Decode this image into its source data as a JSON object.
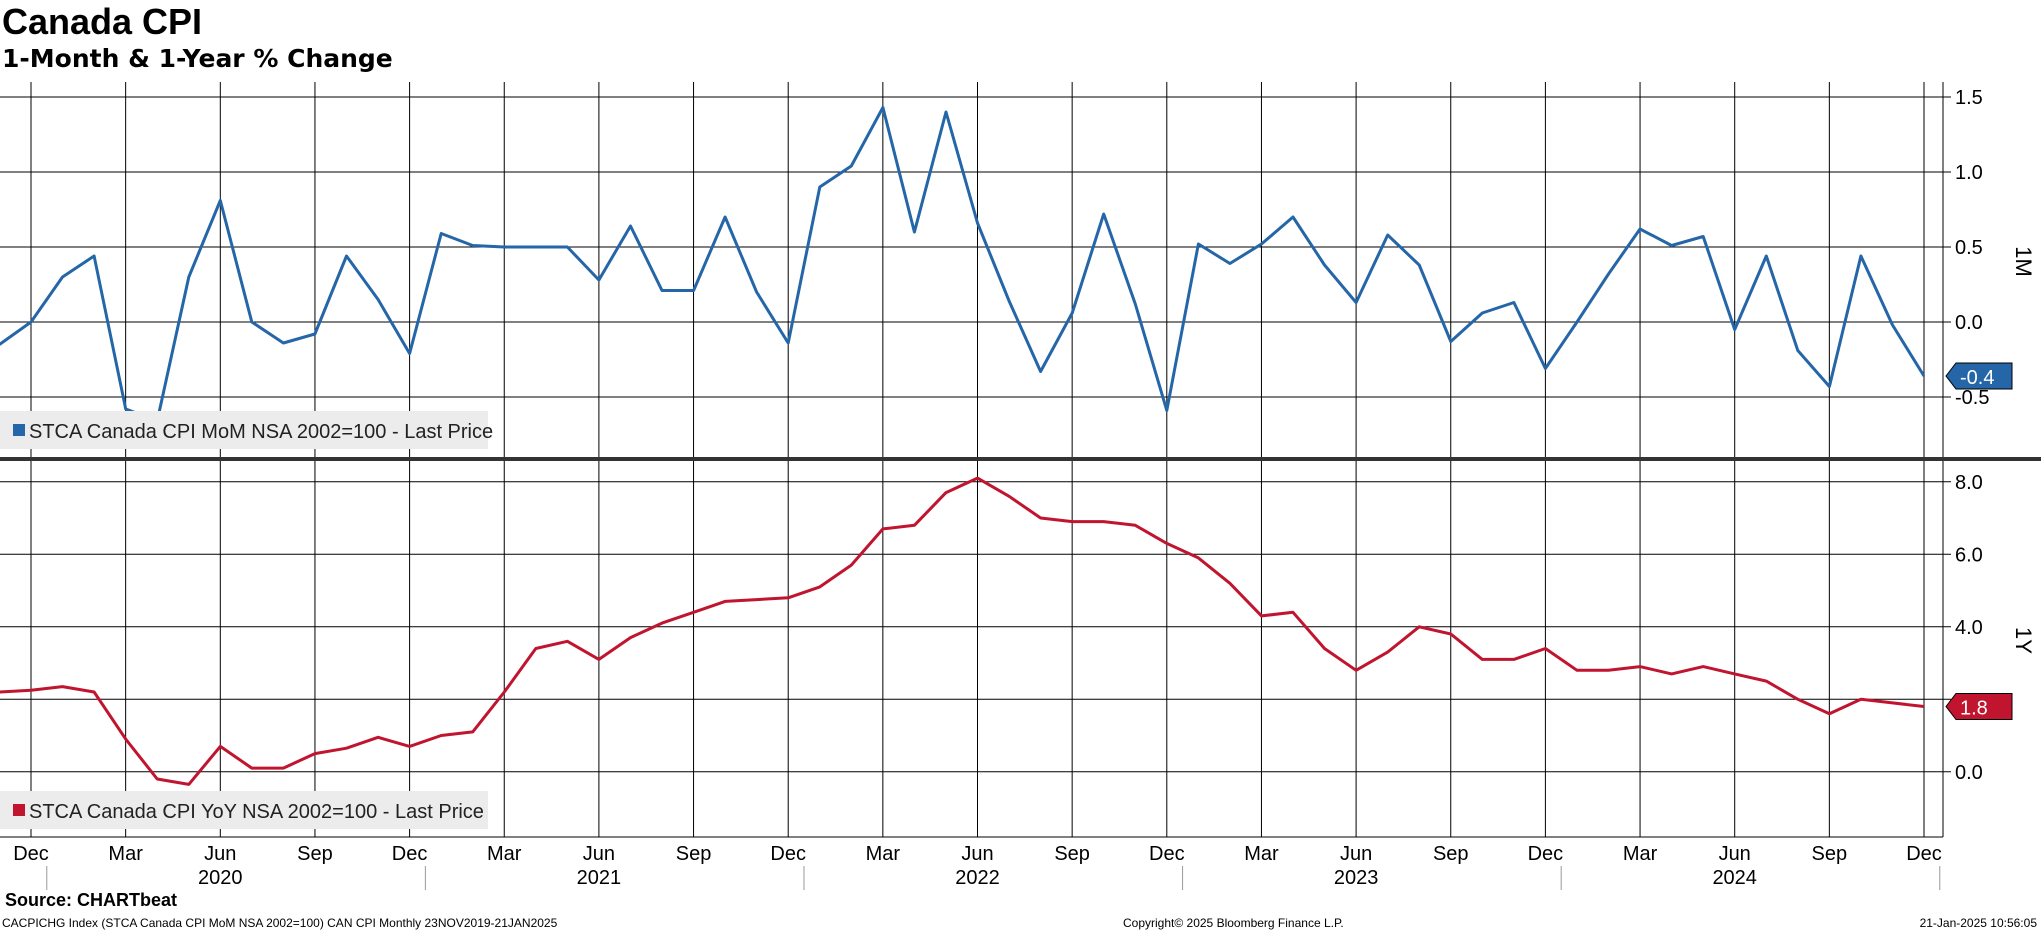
{
  "header": {
    "title": "Canada CPI",
    "subtitle": "1-Month & 1-Year % Change"
  },
  "footer": {
    "source": "Source: CHARTbeat",
    "left": "CACPICHG Index (STCA Canada CPI MoM NSA 2002=100) CAN CPI  Monthly 23NOV2019-21JAN2025",
    "center": "Copyright© 2025 Bloomberg Finance L.P.",
    "right": "21-Jan-2025 10:56:05"
  },
  "colors": {
    "mom": "#2566a8",
    "yoy": "#c0142f",
    "grid": "#000000",
    "legend_bg": "#ececec"
  },
  "chart_data": [
    {
      "type": "line",
      "panel": "top",
      "axis_label": "1M",
      "legend": "STCA Canada CPI MoM NSA 2002=100 - Last Price",
      "last_value_label": "-0.4",
      "ylim": [
        -0.9,
        1.6
      ],
      "yticks": [
        1.5,
        1.0,
        0.5,
        0.0,
        -0.5
      ],
      "ytick_labels": [
        "1.5",
        "1.0",
        "0.5",
        "0.0",
        "-0.5"
      ],
      "x_start": "2019-11",
      "series": [
        {
          "values": [
            -0.15,
            0.0,
            0.3,
            0.44,
            -0.58,
            -0.66,
            0.3,
            0.81,
            0.0,
            -0.14,
            -0.08,
            0.44,
            0.15,
            -0.21,
            0.59,
            0.51,
            0.5,
            0.5,
            0.5,
            0.28,
            0.64,
            0.21,
            0.21,
            0.7,
            0.2,
            -0.14,
            0.9,
            1.04,
            1.43,
            0.6,
            1.4,
            0.66,
            0.14,
            -0.33,
            0.06,
            0.72,
            0.12,
            -0.59,
            0.52,
            0.39,
            0.52,
            0.7,
            0.38,
            0.13,
            0.58,
            0.38,
            -0.13,
            0.06,
            0.13,
            -0.31,
            0.0,
            0.32,
            0.62,
            0.51,
            0.57,
            -0.05,
            0.44,
            -0.19,
            -0.43,
            0.44,
            -0.02,
            -0.36
          ]
        }
      ]
    },
    {
      "type": "line",
      "panel": "bottom",
      "axis_label": "1Y",
      "legend": "STCA Canada CPI YoY NSA 2002=100 - Last Price",
      "last_value_label": "1.8",
      "ylim": [
        -1.8,
        8.6
      ],
      "yticks": [
        8.0,
        6.0,
        4.0,
        2.0,
        0.0
      ],
      "ytick_labels": [
        "8.0",
        "6.0",
        "4.0",
        "",
        "0.0"
      ],
      "x_start": "2019-11",
      "series": [
        {
          "values": [
            2.2,
            2.25,
            2.35,
            2.2,
            0.9,
            -0.2,
            -0.35,
            0.7,
            0.1,
            0.1,
            0.5,
            0.65,
            0.95,
            0.7,
            1.0,
            1.1,
            2.2,
            3.4,
            3.6,
            3.1,
            3.7,
            4.1,
            4.4,
            4.7,
            4.75,
            4.8,
            5.1,
            5.7,
            6.7,
            6.8,
            7.7,
            8.1,
            7.6,
            7.0,
            6.9,
            6.9,
            6.8,
            6.3,
            5.9,
            5.2,
            4.3,
            4.4,
            3.4,
            2.8,
            3.3,
            4.0,
            3.8,
            3.1,
            3.1,
            3.4,
            2.8,
            2.8,
            2.9,
            2.7,
            2.9,
            2.7,
            2.5,
            2.0,
            1.6,
            2.0,
            1.9,
            1.8
          ]
        }
      ]
    }
  ],
  "x_axis": {
    "month_labels": [
      {
        "label": "Dec",
        "index": 1
      },
      {
        "label": "Mar",
        "index": 4
      },
      {
        "label": "Jun",
        "index": 7
      },
      {
        "label": "Sep",
        "index": 10
      },
      {
        "label": "Dec",
        "index": 13
      },
      {
        "label": "Mar",
        "index": 16
      },
      {
        "label": "Jun",
        "index": 19
      },
      {
        "label": "Sep",
        "index": 22
      },
      {
        "label": "Dec",
        "index": 25
      },
      {
        "label": "Mar",
        "index": 28
      },
      {
        "label": "Jun",
        "index": 31
      },
      {
        "label": "Sep",
        "index": 34
      },
      {
        "label": "Dec",
        "index": 37
      },
      {
        "label": "Mar",
        "index": 40
      },
      {
        "label": "Jun",
        "index": 43
      },
      {
        "label": "Sep",
        "index": 46
      },
      {
        "label": "Dec",
        "index": 49
      },
      {
        "label": "Mar",
        "index": 52
      },
      {
        "label": "Jun",
        "index": 55
      },
      {
        "label": "Sep",
        "index": 58
      },
      {
        "label": "Dec",
        "index": 61
      }
    ],
    "year_labels": [
      {
        "label": "2020",
        "index": 7
      },
      {
        "label": "2021",
        "index": 19
      },
      {
        "label": "2022",
        "index": 31
      },
      {
        "label": "2023",
        "index": 43
      },
      {
        "label": "2024",
        "index": 55
      }
    ],
    "year_boundaries": [
      1.5,
      13.5,
      25.5,
      37.5,
      49.5,
      61.5
    ]
  }
}
